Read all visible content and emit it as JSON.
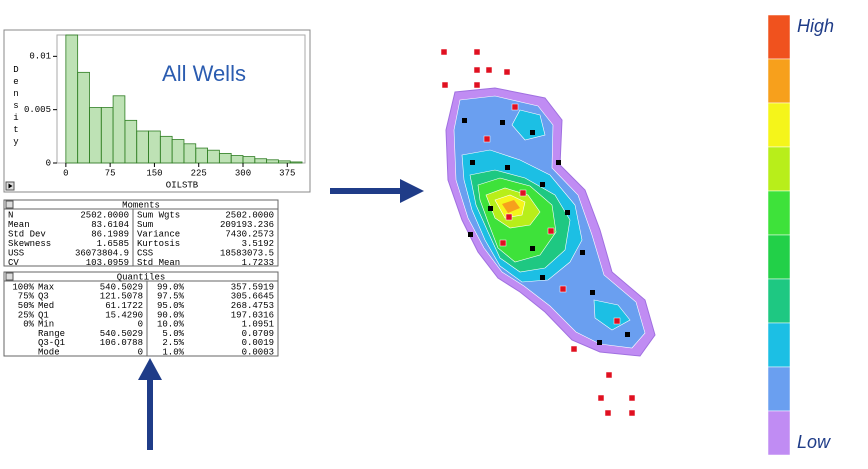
{
  "chart_data": {
    "type": "histogram",
    "annotation": "All Wells",
    "xlabel": "OILSTB",
    "ylabel": "Density",
    "color": "#6fbf5a",
    "edge_color": "#2e7d22",
    "bins": [
      0,
      20,
      40,
      60,
      80,
      100,
      120,
      140,
      160,
      180,
      200,
      220,
      240,
      260,
      280,
      300,
      320,
      340,
      360,
      380,
      400
    ],
    "values": [
      0.012,
      0.0085,
      0.0052,
      0.0052,
      0.0063,
      0.004,
      0.003,
      0.003,
      0.0025,
      0.0022,
      0.0018,
      0.0014,
      0.0012,
      0.0009,
      0.0007,
      0.0006,
      0.0004,
      0.0003,
      0.0002,
      0.0001
    ],
    "xlim": [
      -15,
      405
    ],
    "xticks": [
      0,
      75,
      150,
      225,
      300,
      375
    ],
    "ylim": [
      0,
      0.012
    ],
    "yticks": [
      0,
      0.005,
      0.01
    ]
  },
  "moments": {
    "title": "Moments",
    "rows": [
      [
        "N",
        "2502.0000",
        "Sum Wgts",
        "2502.0000"
      ],
      [
        "Mean",
        "83.6104",
        "Sum",
        "209193.236"
      ],
      [
        "Std Dev",
        "86.1989",
        "Variance",
        "7430.2573"
      ],
      [
        "Skewness",
        "1.6585",
        "Kurtosis",
        "3.5192"
      ],
      [
        "USS",
        "36073804.9",
        "CSS",
        "18583073.5"
      ],
      [
        "CV",
        "103.0959",
        "Std Mean",
        "1.7233"
      ]
    ]
  },
  "quantiles": {
    "title": "Quantiles",
    "rows": [
      {
        "pct": "100%",
        "label": "Max",
        "value": "540.5029",
        "pct2": "99.0%",
        "value2": "357.5919"
      },
      {
        "pct": "75%",
        "label": "Q3",
        "value": "121.5078",
        "pct2": "97.5%",
        "value2": "305.6645"
      },
      {
        "pct": "50%",
        "label": "Med",
        "value": "61.1722",
        "pct2": "95.0%",
        "value2": "268.4753"
      },
      {
        "pct": "25%",
        "label": "Q1",
        "value": "15.4290",
        "pct2": "90.0%",
        "value2": "197.0316"
      },
      {
        "pct": "0%",
        "label": "Min",
        "value": "0",
        "pct2": "10.0%",
        "value2": "1.0951"
      },
      {
        "label": "Range",
        "value": "540.5029",
        "pct2": "5.0%",
        "value2": "0.0709"
      },
      {
        "label": "Q3-Q1",
        "value": "106.0788",
        "pct2": "2.5%",
        "value2": "0.0019"
      },
      {
        "label": "Mode",
        "value": "0",
        "pct2": "1.0%",
        "value2": "0.0003"
      }
    ]
  },
  "legend": {
    "high": "High",
    "low": "Low",
    "colors": [
      "#f0521e",
      "#f7a01c",
      "#f5f51a",
      "#b8ee1a",
      "#3ee23a",
      "#22d048",
      "#1ec882",
      "#1cbfe4",
      "#6a9ff0",
      "#c08cf3"
    ]
  }
}
